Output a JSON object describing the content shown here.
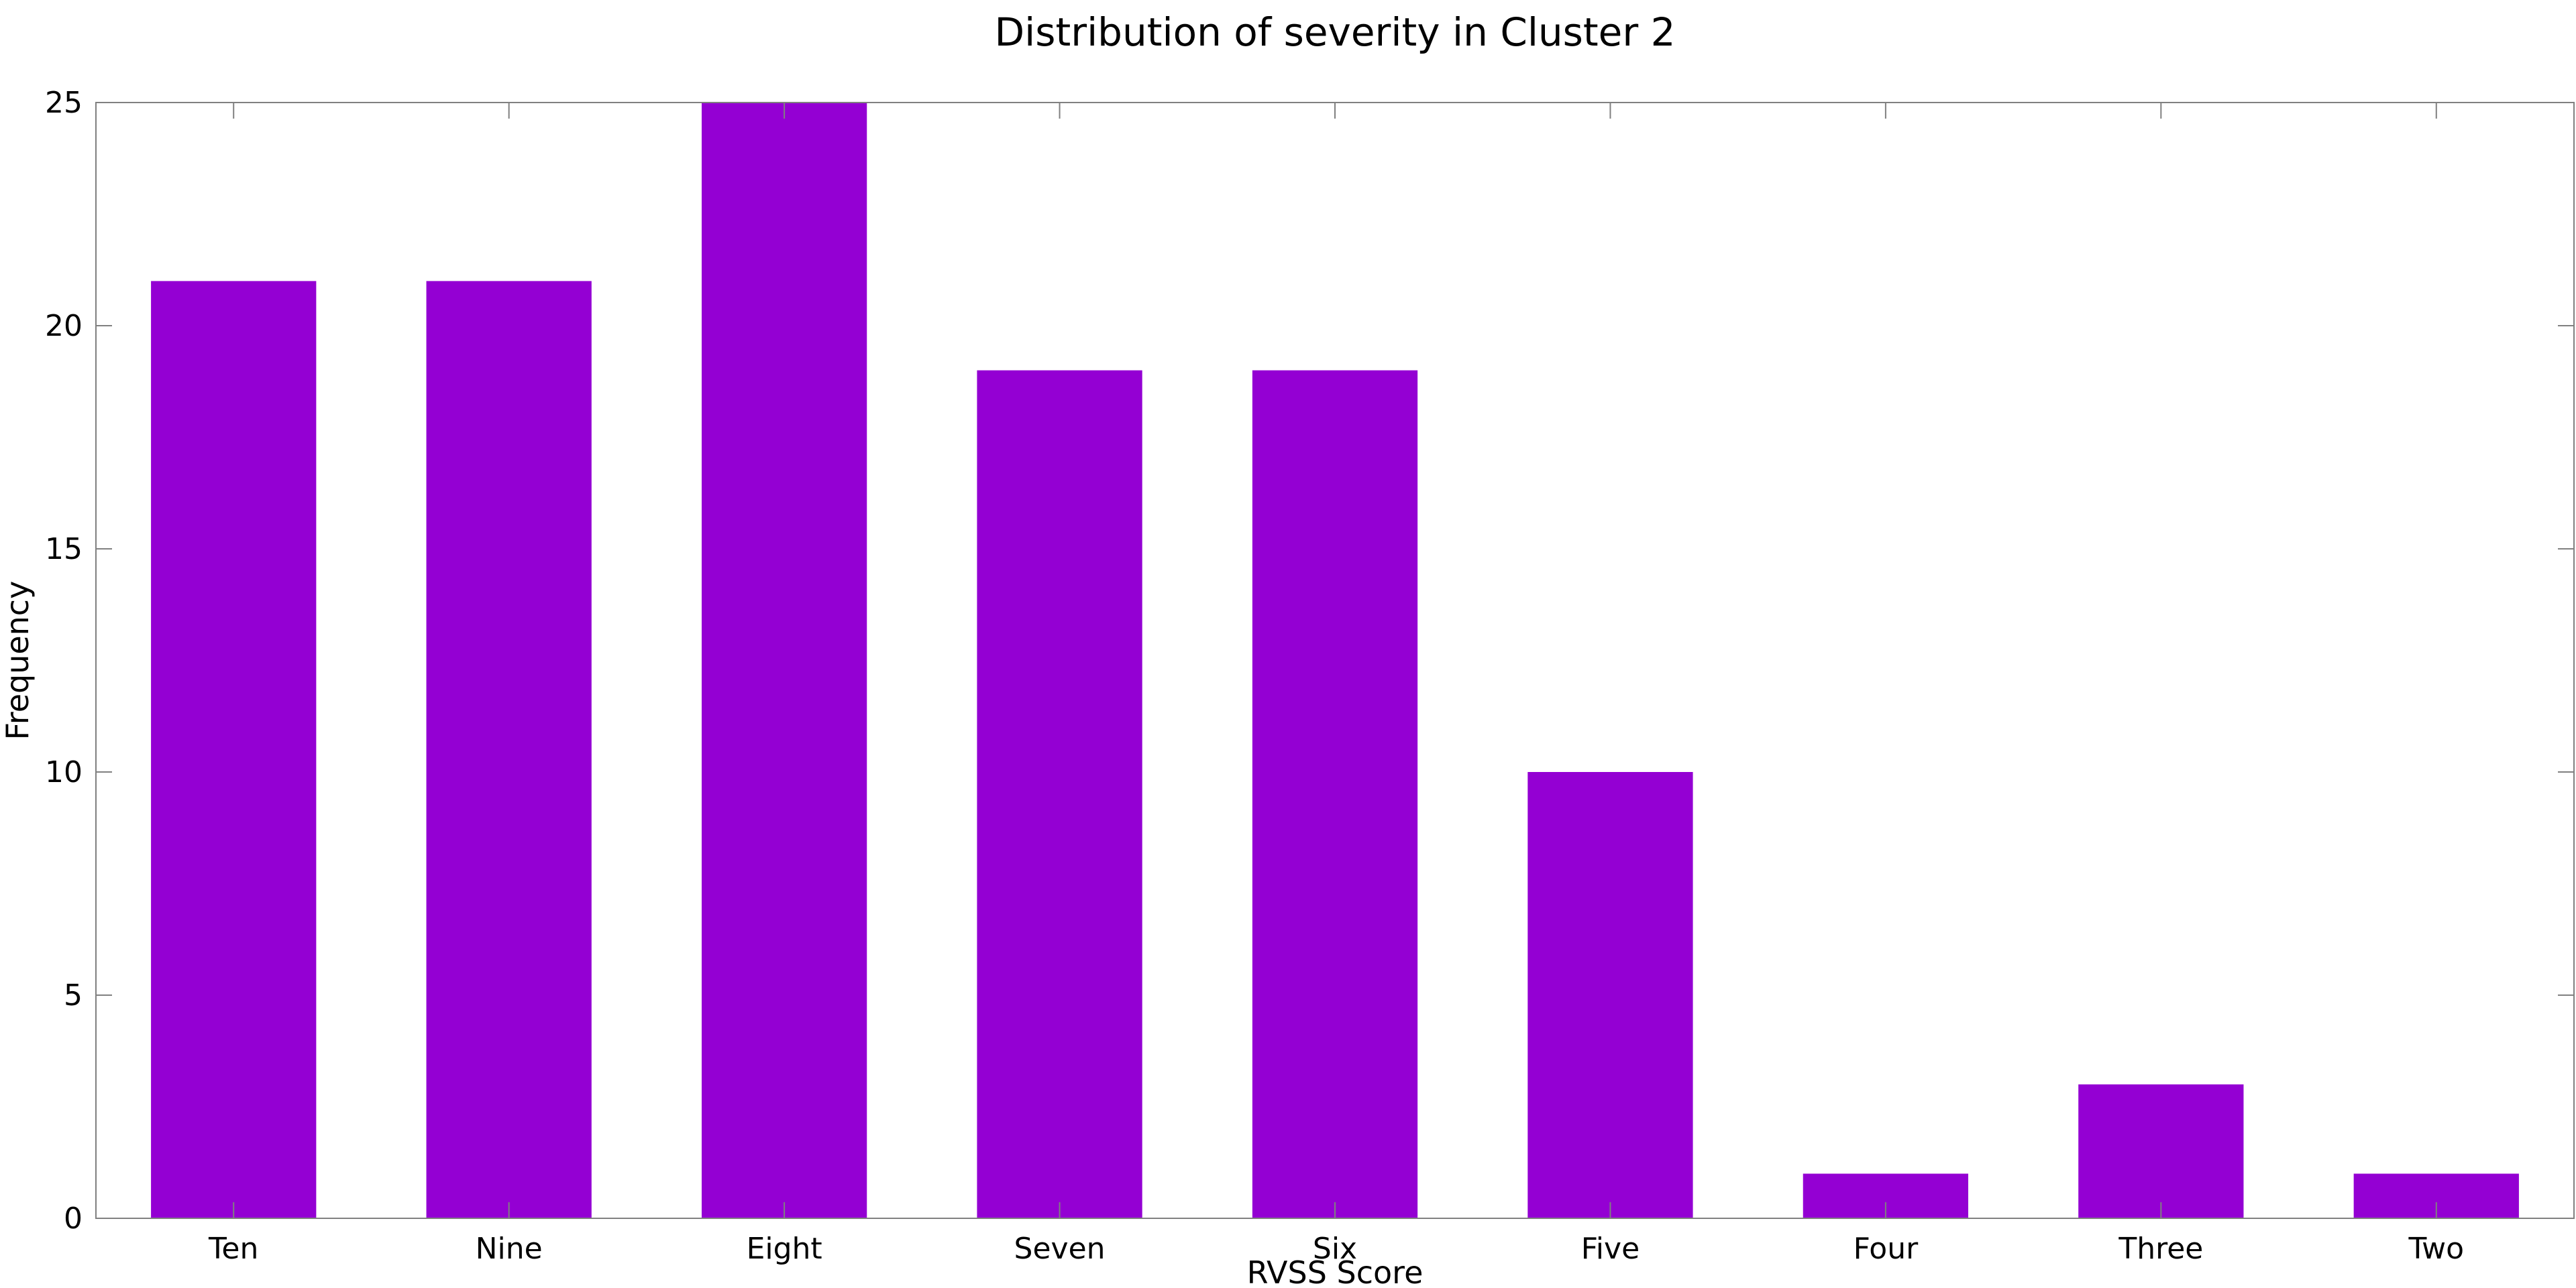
{
  "chart_data": {
    "type": "bar",
    "title": "Distribution of severity in Cluster 2",
    "xlabel": "RVSS Score",
    "ylabel": "Frequency",
    "categories": [
      "Ten",
      "Nine",
      "Eight",
      "Seven",
      "Six",
      "Five",
      "Four",
      "Three",
      "Two"
    ],
    "values": [
      21,
      21,
      25,
      19,
      19,
      10,
      1,
      3,
      1
    ],
    "ylim": [
      0,
      25
    ],
    "yticks": [
      0,
      5,
      10,
      15,
      20,
      25
    ],
    "bar_color": "#9400d3",
    "grid": false
  }
}
